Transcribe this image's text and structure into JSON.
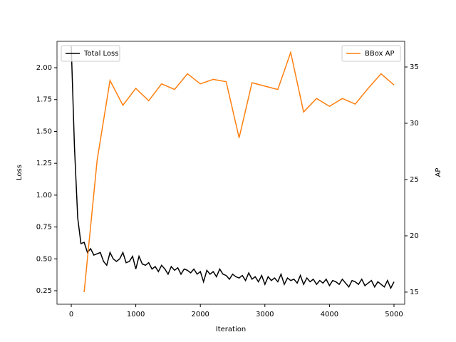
{
  "chart_data": {
    "type": "line",
    "xlabel": "Iteration",
    "ylabel": "Loss",
    "y2label": "AP",
    "xlim": [
      -221,
      5166
    ],
    "xticks": [
      0,
      1000,
      2000,
      3000,
      4000,
      5000
    ],
    "ylim": [
      0.144,
      2.207
    ],
    "yticks": [
      0.25,
      {
        "value": 0.5,
        "label": "0.50"
      },
      0.75,
      {
        "value": 1.0,
        "label": "1.00"
      },
      1.25,
      {
        "value": 1.5,
        "label": "1.50"
      },
      1.75,
      {
        "value": 2.0,
        "label": "2.00"
      }
    ],
    "y2lim": [
      13.92,
      37.28
    ],
    "y2ticks": [
      15,
      20,
      25,
      30,
      35
    ],
    "series": [
      {
        "name": "Total Loss",
        "color": "#000000",
        "axis": "y",
        "legend": "upper left",
        "x": [
          0,
          50,
          100,
          150,
          200,
          250,
          300,
          350,
          400,
          450,
          500,
          550,
          600,
          650,
          700,
          750,
          800,
          850,
          900,
          950,
          1000,
          1050,
          1100,
          1150,
          1200,
          1250,
          1300,
          1350,
          1400,
          1450,
          1500,
          1550,
          1600,
          1650,
          1700,
          1750,
          1800,
          1850,
          1900,
          1950,
          2000,
          2050,
          2100,
          2150,
          2200,
          2250,
          2300,
          2350,
          2400,
          2450,
          2500,
          2550,
          2600,
          2650,
          2700,
          2750,
          2800,
          2850,
          2900,
          2950,
          3000,
          3050,
          3100,
          3150,
          3200,
          3250,
          3300,
          3350,
          3400,
          3450,
          3500,
          3550,
          3600,
          3650,
          3700,
          3750,
          3800,
          3850,
          3900,
          3950,
          4000,
          4050,
          4100,
          4150,
          4200,
          4250,
          4300,
          4350,
          4400,
          4450,
          4500,
          4550,
          4600,
          4650,
          4700,
          4750,
          4800,
          4850,
          4900,
          4950,
          5000
        ],
        "values": [
          2.17,
          1.38,
          0.82,
          0.62,
          0.63,
          0.55,
          0.58,
          0.53,
          0.54,
          0.55,
          0.48,
          0.45,
          0.55,
          0.5,
          0.48,
          0.5,
          0.55,
          0.47,
          0.48,
          0.52,
          0.42,
          0.52,
          0.46,
          0.45,
          0.47,
          0.42,
          0.44,
          0.4,
          0.45,
          0.42,
          0.38,
          0.44,
          0.41,
          0.43,
          0.38,
          0.42,
          0.41,
          0.39,
          0.42,
          0.38,
          0.4,
          0.32,
          0.41,
          0.38,
          0.4,
          0.36,
          0.42,
          0.38,
          0.37,
          0.34,
          0.38,
          0.36,
          0.35,
          0.37,
          0.33,
          0.39,
          0.34,
          0.36,
          0.32,
          0.37,
          0.3,
          0.36,
          0.33,
          0.35,
          0.32,
          0.38,
          0.3,
          0.35,
          0.33,
          0.34,
          0.31,
          0.37,
          0.3,
          0.35,
          0.32,
          0.34,
          0.3,
          0.33,
          0.31,
          0.34,
          0.29,
          0.33,
          0.32,
          0.3,
          0.34,
          0.31,
          0.28,
          0.33,
          0.32,
          0.3,
          0.34,
          0.29,
          0.31,
          0.33,
          0.28,
          0.32,
          0.3,
          0.28,
          0.33,
          0.27,
          0.32
        ]
      },
      {
        "name": "BBox AP",
        "color": "#ff7f0e",
        "axis": "y2",
        "legend": "upper right",
        "x": [
          200,
          400,
          600,
          800,
          1000,
          1200,
          1400,
          1600,
          1800,
          2000,
          2200,
          2400,
          2600,
          2800,
          3000,
          3200,
          3400,
          3600,
          3800,
          4000,
          4200,
          4400,
          4600,
          4800,
          5000
        ],
        "values": [
          15.0,
          26.7,
          33.8,
          31.6,
          33.1,
          32.0,
          33.5,
          33.0,
          34.4,
          33.5,
          33.9,
          33.7,
          28.7,
          33.6,
          33.3,
          33.0,
          36.3,
          31.0,
          32.2,
          31.5,
          32.2,
          31.7,
          33.1,
          34.4,
          33.4
        ]
      }
    ]
  }
}
